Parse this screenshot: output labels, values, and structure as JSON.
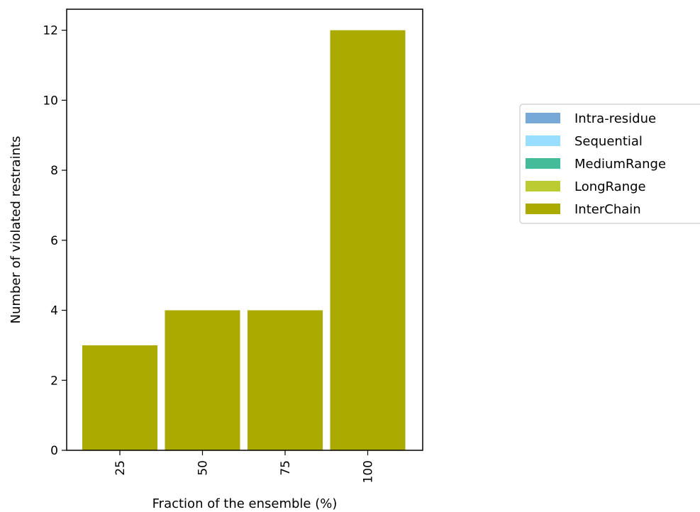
{
  "chart_data": {
    "type": "bar",
    "stacked": true,
    "categories": [
      "25",
      "50",
      "75",
      "100"
    ],
    "series": [
      {
        "name": "Intra-residue",
        "color": "#76a9d8",
        "values": [
          0,
          0,
          0,
          0
        ]
      },
      {
        "name": "Sequential",
        "color": "#99ddff",
        "values": [
          0,
          0,
          0,
          0
        ]
      },
      {
        "name": "MediumRange",
        "color": "#44bb99",
        "values": [
          0,
          0,
          0,
          0
        ]
      },
      {
        "name": "LongRange",
        "color": "#bbcc33",
        "values": [
          0,
          0,
          0,
          0
        ]
      },
      {
        "name": "InterChain",
        "color": "#aaaa00",
        "values": [
          3,
          4,
          4,
          12
        ]
      }
    ],
    "xlabel": "Fraction of the ensemble (%)",
    "ylabel": "Number of violated restraints",
    "ylim": [
      0,
      12.6
    ],
    "yticks": [
      0,
      2,
      4,
      6,
      8,
      10,
      12
    ],
    "grid": false,
    "legend_position": "right"
  }
}
